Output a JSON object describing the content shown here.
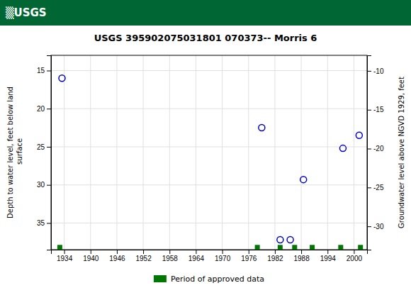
{
  "chart_data": {
    "type": "scatter",
    "title": "USGS 395902075031801 070373-- Morris 6",
    "annotations": [
      "▒USGS"
    ],
    "y_label": "Depth to water level, feet below land\n surface",
    "y2_label": "Groundwater level above NGVD 1929, feet",
    "xlim": [
      1931,
      2003
    ],
    "xticks": [
      1934,
      1940,
      1946,
      1952,
      1958,
      1964,
      1970,
      1976,
      1982,
      1988,
      1994,
      2000
    ],
    "ylim": [
      38.5,
      13.0
    ],
    "yticks": [
      15,
      20,
      25,
      30,
      35
    ],
    "y2lim": [
      -33.0,
      -8.0
    ],
    "y2ticks": [
      -10,
      -15,
      -20,
      -25,
      -30
    ],
    "grid": true,
    "legend": "bottom",
    "series": [
      {
        "x": [
          1933.5,
          1979.0,
          1983.2,
          1985.5,
          1988.5,
          1997.5,
          2001.2
        ],
        "values": [
          16.0,
          22.5,
          37.2,
          37.2,
          29.3,
          25.2,
          23.5
        ],
        "color": "#0000cc",
        "marker": "circle"
      },
      {
        "name": "Period of approved data",
        "x": [
          1933.0,
          1978.0,
          1983.2,
          1986.5,
          1990.5,
          1997.0,
          2001.5
        ],
        "values": [
          38.2,
          38.2,
          38.2,
          38.2,
          38.2,
          38.2,
          38.2
        ],
        "color": "#007700",
        "marker": "square"
      }
    ]
  }
}
